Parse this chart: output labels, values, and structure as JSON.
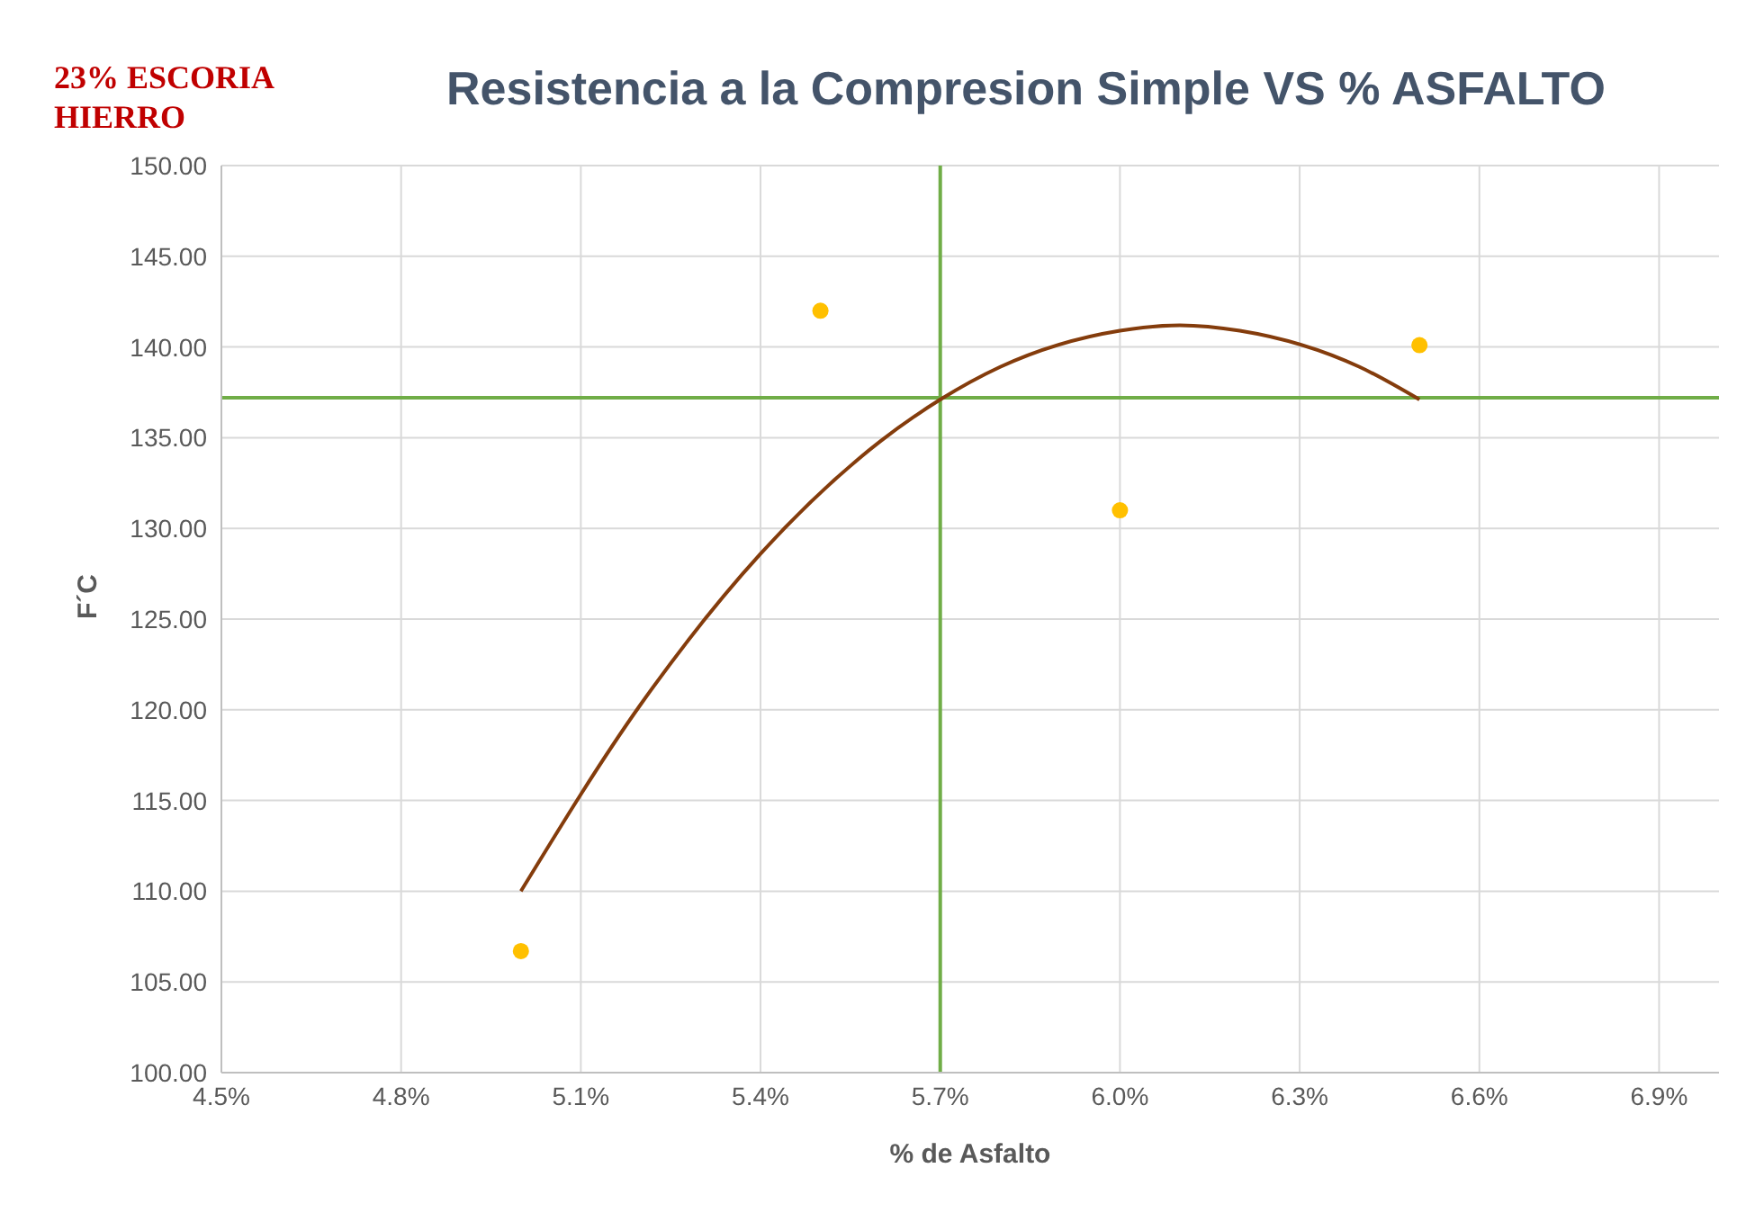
{
  "chart_data": {
    "type": "scatter",
    "title": "Resistencia a la Compresion Simple VS % ASFALTO",
    "xlabel": "% de Asfalto",
    "ylabel": "F´C",
    "annotations": [
      "23% ESCORIA HIERRO"
    ],
    "series": [
      {
        "color": "#ffc000",
        "marker": "circle",
        "x": [
          5.0,
          5.5,
          6.0,
          6.5
        ],
        "values": [
          106.7,
          142.0,
          131.0,
          140.1
        ]
      },
      {
        "type": "line",
        "color": "#843c0c",
        "x": [
          5.0,
          5.2,
          5.4,
          5.6,
          5.7,
          5.8,
          6.0,
          6.1,
          6.2,
          6.4,
          6.5
        ],
        "values": [
          110.0,
          120.3,
          128.6,
          134.8,
          137.1,
          138.9,
          140.9,
          141.2,
          140.9,
          138.9,
          137.1
        ]
      }
    ],
    "ref_lines": [
      {
        "axis": "y",
        "value": 137.2,
        "color": "#70ad47"
      },
      {
        "axis": "x",
        "value": 5.7,
        "color": "#70ad47"
      }
    ],
    "xlim": [
      4.5,
      7.0
    ],
    "xticks": [
      {
        "value": 4.5,
        "label": "4.5%"
      },
      {
        "value": 4.8,
        "label": "4.8%"
      },
      {
        "value": 5.1,
        "label": "5.1%"
      },
      {
        "value": 5.4,
        "label": "5.4%"
      },
      {
        "value": 5.7,
        "label": "5.7%"
      },
      {
        "value": 6.0,
        "label": "6.0%"
      },
      {
        "value": 6.3,
        "label": "6.3%"
      },
      {
        "value": 6.6,
        "label": "6.6%"
      },
      {
        "value": 6.9,
        "label": "6.9%"
      }
    ],
    "ylim": [
      100,
      150
    ],
    "yticks": [
      {
        "value": 100,
        "label": "100.00"
      },
      {
        "value": 105,
        "label": "105.00"
      },
      {
        "value": 110,
        "label": "110.00"
      },
      {
        "value": 115,
        "label": "115.00"
      },
      {
        "value": 120,
        "label": "120.00"
      },
      {
        "value": 125,
        "label": "125.00"
      },
      {
        "value": 130,
        "label": "130.00"
      },
      {
        "value": 135,
        "label": "135.00"
      },
      {
        "value": 140,
        "label": "140.00"
      },
      {
        "value": 145,
        "label": "145.00"
      },
      {
        "value": 150,
        "label": "150.00"
      }
    ],
    "grid": true
  }
}
